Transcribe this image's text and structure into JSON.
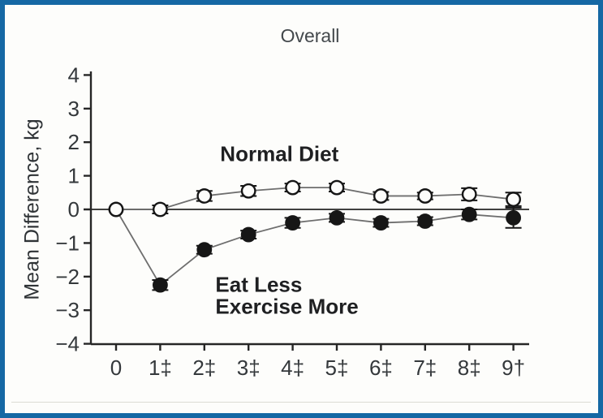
{
  "figure": {
    "border_color": "#1568a4",
    "background": "#fdfdfb"
  },
  "chart_data": {
    "type": "line",
    "title": "Overall",
    "xlabel": "",
    "ylabel": "Mean Difference, kg",
    "ylim": [
      -4,
      4
    ],
    "grid": false,
    "zero_line": true,
    "legend_position": "inline-annotations",
    "ytick_values": [
      4,
      3,
      2,
      1,
      0,
      -1,
      -2,
      -3,
      -4
    ],
    "ytick_labels": [
      "4",
      "3",
      "2",
      "1",
      "0",
      "−1",
      "−2",
      "−3",
      "−4"
    ],
    "x": [
      0,
      1,
      2,
      3,
      4,
      5,
      6,
      7,
      8,
      9
    ],
    "xtick_labels": [
      "0",
      "1‡",
      "2‡",
      "3‡",
      "4‡",
      "5‡",
      "6‡",
      "7‡",
      "8‡",
      "9†"
    ],
    "series": [
      {
        "name": "Normal Diet",
        "marker": "open-circle",
        "values": [
          0,
          0,
          0.4,
          0.55,
          0.65,
          0.65,
          0.4,
          0.4,
          0.45,
          0.3
        ],
        "errors": [
          0,
          0.12,
          0.15,
          0.15,
          0.12,
          0.12,
          0.12,
          0.1,
          0.18,
          0.2
        ]
      },
      {
        "name": "Eat Less Exercise More",
        "marker": "filled-circle",
        "values": [
          0,
          -2.25,
          -1.2,
          -0.75,
          -0.4,
          -0.25,
          -0.4,
          -0.35,
          -0.15,
          -0.25
        ],
        "errors": [
          0,
          0.15,
          0.12,
          0.12,
          0.15,
          0.12,
          0.12,
          0.12,
          0.15,
          0.3
        ]
      }
    ],
    "annotations": [
      {
        "text": "Normal Diet",
        "x": 3.7,
        "y": 1.65,
        "align": "center"
      },
      {
        "text": "Eat Less",
        "x": 2.25,
        "y": -2.25,
        "align": "left"
      },
      {
        "text": "Exercise More",
        "x": 2.25,
        "y": -2.9,
        "align": "left"
      }
    ],
    "colors": {
      "marker": "#161616",
      "line": "#6e6e6e",
      "axis": "#262626",
      "tick_text": "#34383b",
      "title_text": "#43484c"
    }
  }
}
